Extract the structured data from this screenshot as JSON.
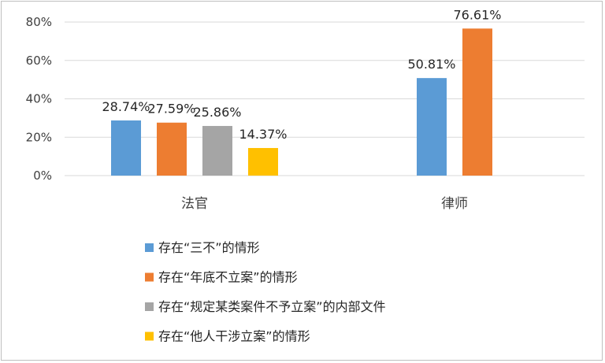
{
  "chart_data": {
    "type": "bar",
    "categories": [
      "法官",
      "律师"
    ],
    "series": [
      {
        "name": "存在“三不”的情形",
        "color": "#5b9bd5",
        "values": [
          28.74,
          50.81
        ]
      },
      {
        "name": "存在“年底不立案”的情形",
        "color": "#ed7d31",
        "values": [
          27.59,
          76.61
        ]
      },
      {
        "name": "存在“规定某类案件不予立案”的内部文件",
        "color": "#a5a5a5",
        "values": [
          25.86,
          null
        ]
      },
      {
        "name": "存在“他人干涉立案”的情形",
        "color": "#ffc000",
        "values": [
          14.37,
          null
        ]
      }
    ],
    "data_labels": [
      [
        "28.74%",
        "50.81%"
      ],
      [
        "27.59%",
        "76.61%"
      ],
      [
        "25.86%",
        ""
      ],
      [
        "14.37%",
        ""
      ]
    ],
    "y_ticks": [
      "0%",
      "20%",
      "40%",
      "60%",
      "80%"
    ],
    "ylim": [
      0,
      80
    ],
    "grid": true,
    "legend_position": "bottom",
    "title": "",
    "xlabel": "",
    "ylabel": ""
  }
}
